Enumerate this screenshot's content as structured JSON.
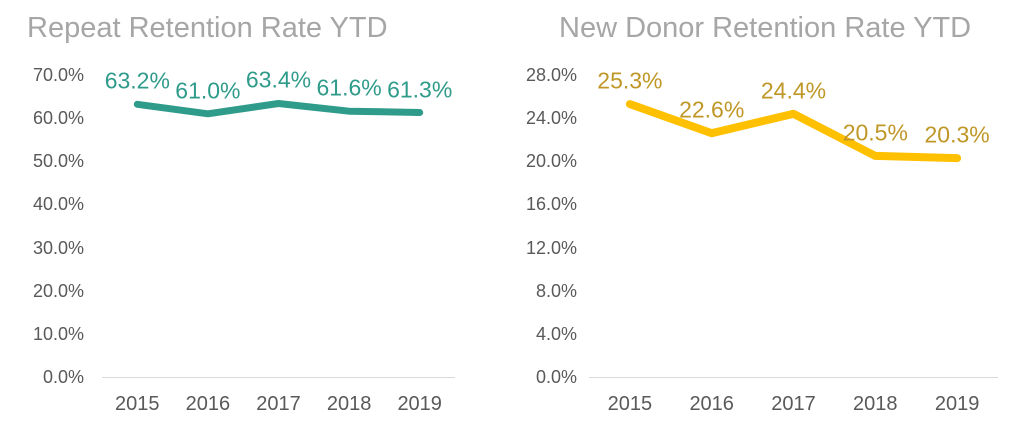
{
  "page": {
    "background_color": "#FFFFFF"
  },
  "chart_data": [
    {
      "type": "line",
      "title": "Repeat Retention Rate YTD",
      "categories": [
        "2015",
        "2016",
        "2017",
        "2018",
        "2019"
      ],
      "values": [
        63.2,
        61.0,
        63.4,
        61.6,
        61.3
      ],
      "data_labels": [
        "63.2%",
        "61.0%",
        "63.4%",
        "61.6%",
        "61.3%"
      ],
      "xlabel": "",
      "ylabel": "",
      "ylim": [
        0,
        70
      ],
      "ytick_labels": [
        "70.0%",
        "60.0%",
        "50.0%",
        "40.0%",
        "30.0%",
        "20.0%",
        "10.0%",
        "0.0%"
      ],
      "grid": false,
      "legend": null,
      "line_color": "#2F9B8A",
      "label_color": "#2F9B8A",
      "line_width": 7,
      "title_color": "#A6A6A6",
      "tick_color": "#595959",
      "axis_line_color": "#D9D9D9"
    },
    {
      "type": "line",
      "title": "New Donor Retention Rate YTD",
      "categories": [
        "2015",
        "2016",
        "2017",
        "2018",
        "2019"
      ],
      "values": [
        25.3,
        22.6,
        24.4,
        20.5,
        20.3
      ],
      "data_labels": [
        "25.3%",
        "22.6%",
        "24.4%",
        "20.5%",
        "20.3%"
      ],
      "xlabel": "",
      "ylabel": "",
      "ylim": [
        0,
        28
      ],
      "ytick_labels": [
        "28.0%",
        "24.0%",
        "20.0%",
        "16.0%",
        "12.0%",
        "8.0%",
        "4.0%",
        "0.0%"
      ],
      "grid": false,
      "legend": null,
      "line_color": "#FFC000",
      "label_color": "#BF9727",
      "line_width": 8,
      "title_color": "#A6A6A6",
      "tick_color": "#595959",
      "axis_line_color": "#D9D9D9"
    }
  ]
}
